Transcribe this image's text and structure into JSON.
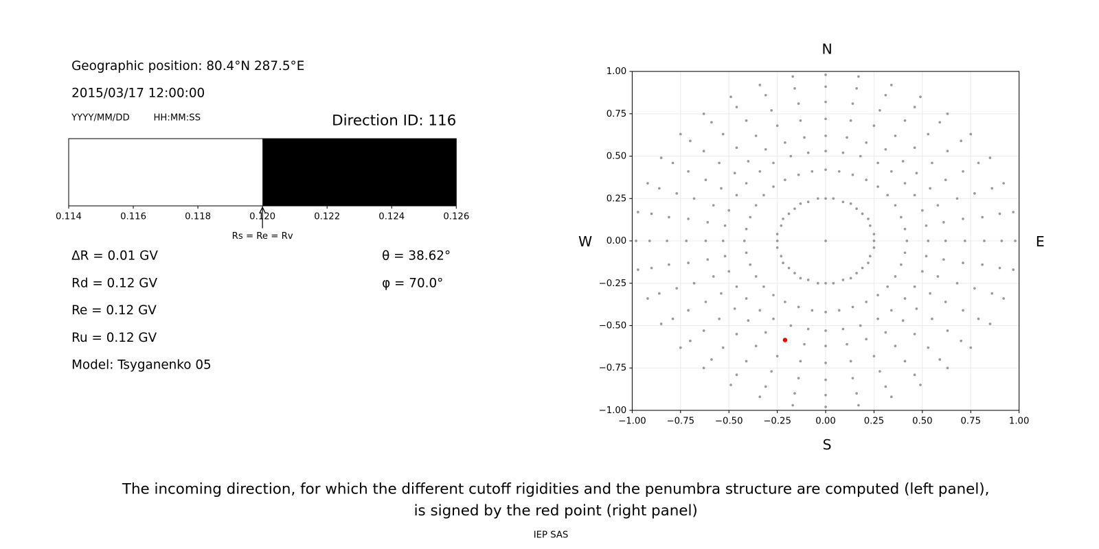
{
  "info": {
    "position": "Geographic position: 80.4°N 287.5°E",
    "datetime": "2015/03/17 12:00:00",
    "date_format": "YYYY/MM/DD",
    "time_format": "HH:MM:SS",
    "direction": "Direction ID: 116",
    "rigidities": [
      "ΔR = 0.01 GV",
      "Rd = 0.12 GV",
      "Re = 0.12 GV",
      "Ru = 0.12 GV"
    ],
    "model": "Model: Tsyganenko 05",
    "angles": [
      "θ = 38.62°",
      "φ = 70.0°"
    ],
    "compass": [
      "N",
      "S",
      "W",
      "E"
    ],
    "caption": [
      "The incoming direction, for which the different cutoff rigidities and the penumbra structure are computed (left panel),",
      "is signed by the red point (right panel)"
    ],
    "footer": "IEP SAS"
  },
  "chart_data": [
    {
      "type": "penumbra",
      "segments": [
        {
          "start": 0.114,
          "end": 0.12,
          "color": "#ffffff"
        },
        {
          "start": 0.12,
          "end": 0.126,
          "color": "#000000"
        }
      ],
      "xlim": [
        0.114,
        0.126
      ],
      "xticks": [
        0.114,
        0.116,
        0.118,
        {
          "value": 0.12,
          "label": "0.120"
        },
        0.122,
        0.124,
        0.126
      ],
      "annotation": {
        "text": "Rs = Re = Rv",
        "x": 0.12
      }
    },
    {
      "type": "scatter",
      "xlim": [
        -1,
        1
      ],
      "ylim": [
        -1,
        1
      ],
      "grid": true,
      "xticks": [
        {
          "value": -1,
          "label": "−1.00"
        },
        {
          "value": -0.75,
          "label": "−0.75"
        },
        {
          "value": -0.5,
          "label": "−0.50"
        },
        {
          "value": -0.25,
          "label": "−0.25"
        },
        {
          "value": 0,
          "label": "0.00"
        },
        {
          "value": 0.25,
          "label": "0.25"
        },
        {
          "value": 0.5,
          "label": "0.50"
        },
        {
          "value": 0.75,
          "label": "0.75"
        },
        {
          "value": 1,
          "label": "1.00"
        }
      ],
      "yticks": [
        {
          "value": -1,
          "label": "−1.00"
        },
        {
          "value": -0.75,
          "label": "−0.75"
        },
        {
          "value": -0.5,
          "label": "−0.50"
        },
        {
          "value": -0.25,
          "label": "−0.25"
        },
        {
          "value": 0,
          "label": "0.00"
        },
        {
          "value": 0.25,
          "label": "0.25"
        },
        {
          "value": 0.5,
          "label": "0.50"
        },
        {
          "value": 0.75,
          "label": "0.75"
        },
        {
          "value": 1,
          "label": "1.00"
        }
      ],
      "series": [
        {
          "color": "#999999",
          "x": [
            0,
            0.25,
            0.25,
            0.23,
            0.22,
            0.19,
            0.16,
            0.13,
            0.09,
            0.04,
            0,
            -0.04,
            -0.09,
            -0.13,
            -0.16,
            -0.19,
            -0.22,
            -0.23,
            -0.25,
            -0.25,
            -0.25,
            -0.23,
            -0.22,
            -0.19,
            -0.16,
            -0.13,
            -0.09,
            -0.04,
            0,
            0.04,
            0.09,
            0.13,
            0.16,
            0.19,
            0.22,
            0.23,
            0.25,
            0.42,
            0.41,
            0.39,
            0.36,
            0.32,
            0.27,
            0.21,
            0.14,
            0.07,
            0,
            -0.07,
            -0.14,
            -0.21,
            -0.27,
            -0.32,
            -0.36,
            -0.39,
            -0.41,
            -0.42,
            -0.41,
            -0.39,
            -0.36,
            -0.32,
            -0.27,
            -0.21,
            -0.14,
            -0.07,
            0,
            0.07,
            0.14,
            0.21,
            0.27,
            0.32,
            0.36,
            0.39,
            0.41,
            0.53,
            0.52,
            0.5,
            0.46,
            0.41,
            0.34,
            0.27,
            0.18,
            0.09,
            0,
            -0.09,
            -0.18,
            -0.27,
            -0.34,
            -0.41,
            -0.46,
            -0.5,
            -0.52,
            -0.53,
            -0.52,
            -0.5,
            -0.46,
            -0.41,
            -0.34,
            -0.27,
            -0.18,
            -0.09,
            0,
            0.09,
            0.18,
            0.27,
            0.34,
            0.41,
            0.46,
            0.5,
            0.52,
            0.62,
            0.61,
            0.58,
            0.54,
            0.47,
            0.4,
            0.31,
            0.21,
            0.11,
            0,
            -0.11,
            -0.21,
            -0.31,
            -0.4,
            -0.47,
            -0.54,
            -0.58,
            -0.61,
            -0.62,
            -0.61,
            -0.58,
            -0.54,
            -0.47,
            -0.4,
            -0.31,
            -0.21,
            -0.11,
            0,
            0.11,
            0.21,
            0.31,
            0.4,
            0.47,
            0.54,
            0.58,
            0.61,
            0.72,
            0.71,
            0.68,
            0.62,
            0.55,
            0.46,
            0.36,
            0.25,
            0.13,
            0,
            -0.13,
            -0.25,
            -0.36,
            -0.46,
            -0.55,
            -0.62,
            -0.68,
            -0.71,
            -0.72,
            -0.71,
            -0.68,
            -0.62,
            -0.55,
            -0.46,
            -0.36,
            -0.25,
            -0.13,
            0,
            0.13,
            0.25,
            0.36,
            0.46,
            0.55,
            0.62,
            0.68,
            0.71,
            0.82,
            0.81,
            0.77,
            0.71,
            0.63,
            0.53,
            0.41,
            0.28,
            0.14,
            0,
            -0.14,
            -0.28,
            -0.41,
            -0.53,
            -0.63,
            -0.71,
            -0.77,
            -0.81,
            -0.82,
            -0.81,
            -0.77,
            -0.71,
            -0.63,
            -0.53,
            -0.41,
            -0.28,
            -0.14,
            0,
            0.14,
            0.28,
            0.41,
            0.53,
            0.63,
            0.71,
            0.77,
            0.81,
            0.91,
            0.9,
            0.86,
            0.79,
            0.7,
            0.59,
            0.46,
            0.31,
            0.16,
            0,
            -0.16,
            -0.31,
            -0.46,
            -0.59,
            -0.7,
            -0.79,
            -0.86,
            -0.9,
            -0.91,
            -0.9,
            -0.86,
            -0.79,
            -0.7,
            -0.59,
            -0.46,
            -0.31,
            -0.16,
            0,
            0.16,
            0.31,
            0.46,
            0.59,
            0.7,
            0.79,
            0.86,
            0.9,
            0.98,
            0.97,
            0.92,
            0.85,
            0.75,
            0.63,
            0.49,
            0.34,
            0.17,
            0,
            -0.17,
            -0.34,
            -0.49,
            -0.63,
            -0.75,
            -0.85,
            -0.92,
            -0.97,
            -0.98,
            -0.97,
            -0.92,
            -0.85,
            -0.75,
            -0.63,
            -0.49,
            -0.34,
            -0.17,
            0,
            0.17,
            0.34,
            0.49,
            0.63,
            0.75,
            0.85,
            0.92,
            0.97
          ],
          "values": [
            0,
            0,
            0.04,
            0.09,
            0.13,
            0.16,
            0.19,
            0.22,
            0.23,
            0.25,
            0.25,
            0.25,
            0.23,
            0.22,
            0.19,
            0.16,
            0.13,
            0.09,
            0.04,
            0,
            -0.04,
            -0.09,
            -0.13,
            -0.16,
            -0.19,
            -0.22,
            -0.23,
            -0.25,
            -0.25,
            -0.25,
            -0.23,
            -0.22,
            -0.19,
            -0.16,
            -0.13,
            -0.09,
            -0.04,
            0,
            0.07,
            0.14,
            0.21,
            0.27,
            0.32,
            0.36,
            0.39,
            0.41,
            0.42,
            0.41,
            0.39,
            0.36,
            0.32,
            0.27,
            0.21,
            0.14,
            0.07,
            0,
            -0.07,
            -0.14,
            -0.21,
            -0.27,
            -0.32,
            -0.36,
            -0.39,
            -0.41,
            -0.42,
            -0.41,
            -0.39,
            -0.36,
            -0.32,
            -0.27,
            -0.21,
            -0.14,
            -0.07,
            0,
            0.09,
            0.18,
            0.27,
            0.34,
            0.41,
            0.46,
            0.5,
            0.52,
            0.53,
            0.52,
            0.5,
            0.46,
            0.41,
            0.34,
            0.27,
            0.18,
            0.09,
            0,
            -0.09,
            -0.18,
            -0.27,
            -0.34,
            -0.41,
            -0.46,
            -0.5,
            -0.52,
            -0.53,
            -0.52,
            -0.5,
            -0.46,
            -0.41,
            -0.34,
            -0.27,
            -0.18,
            -0.09,
            0,
            0.11,
            0.21,
            0.31,
            0.4,
            0.47,
            0.54,
            0.58,
            0.61,
            0.62,
            0.61,
            0.58,
            0.54,
            0.47,
            0.4,
            0.31,
            0.21,
            0.11,
            0,
            -0.11,
            -0.21,
            -0.31,
            -0.4,
            -0.47,
            -0.54,
            -0.58,
            -0.61,
            -0.62,
            -0.61,
            -0.58,
            -0.54,
            -0.47,
            -0.4,
            -0.31,
            -0.21,
            -0.11,
            0,
            0.13,
            0.25,
            0.36,
            0.46,
            0.55,
            0.62,
            0.68,
            0.71,
            0.72,
            0.71,
            0.68,
            0.62,
            0.55,
            0.46,
            0.36,
            0.25,
            0.13,
            0,
            -0.13,
            -0.25,
            -0.36,
            -0.46,
            -0.55,
            -0.62,
            -0.68,
            -0.71,
            -0.72,
            -0.71,
            -0.68,
            -0.62,
            -0.55,
            -0.46,
            -0.36,
            -0.25,
            -0.13,
            0,
            0.14,
            0.28,
            0.41,
            0.53,
            0.63,
            0.71,
            0.77,
            0.81,
            0.82,
            0.81,
            0.77,
            0.71,
            0.63,
            0.53,
            0.41,
            0.28,
            0.14,
            0,
            -0.14,
            -0.28,
            -0.41,
            -0.53,
            -0.63,
            -0.71,
            -0.77,
            -0.81,
            -0.82,
            -0.81,
            -0.77,
            -0.71,
            -0.63,
            -0.53,
            -0.41,
            -0.28,
            -0.14,
            0,
            0.16,
            0.31,
            0.46,
            0.59,
            0.7,
            0.79,
            0.86,
            0.9,
            0.91,
            0.9,
            0.86,
            0.79,
            0.7,
            0.59,
            0.46,
            0.31,
            0.16,
            0,
            -0.16,
            -0.31,
            -0.46,
            -0.59,
            -0.7,
            -0.79,
            -0.86,
            -0.9,
            -0.91,
            -0.9,
            -0.86,
            -0.79,
            -0.7,
            -0.59,
            -0.46,
            -0.31,
            -0.16,
            0,
            0.17,
            0.34,
            0.49,
            0.63,
            0.75,
            0.85,
            0.92,
            0.97,
            0.98,
            0.97,
            0.92,
            0.85,
            0.75,
            0.63,
            0.49,
            0.34,
            0.17,
            0,
            -0.17,
            -0.34,
            -0.49,
            -0.63,
            -0.75,
            -0.85,
            -0.92,
            -0.97,
            -0.98,
            -0.97,
            -0.92,
            -0.85,
            -0.75,
            -0.63,
            -0.49,
            -0.34,
            -0.17
          ]
        },
        {
          "color": "#ff0000",
          "x": [
            -0.21
          ],
          "values": [
            -0.585
          ]
        }
      ]
    }
  ]
}
